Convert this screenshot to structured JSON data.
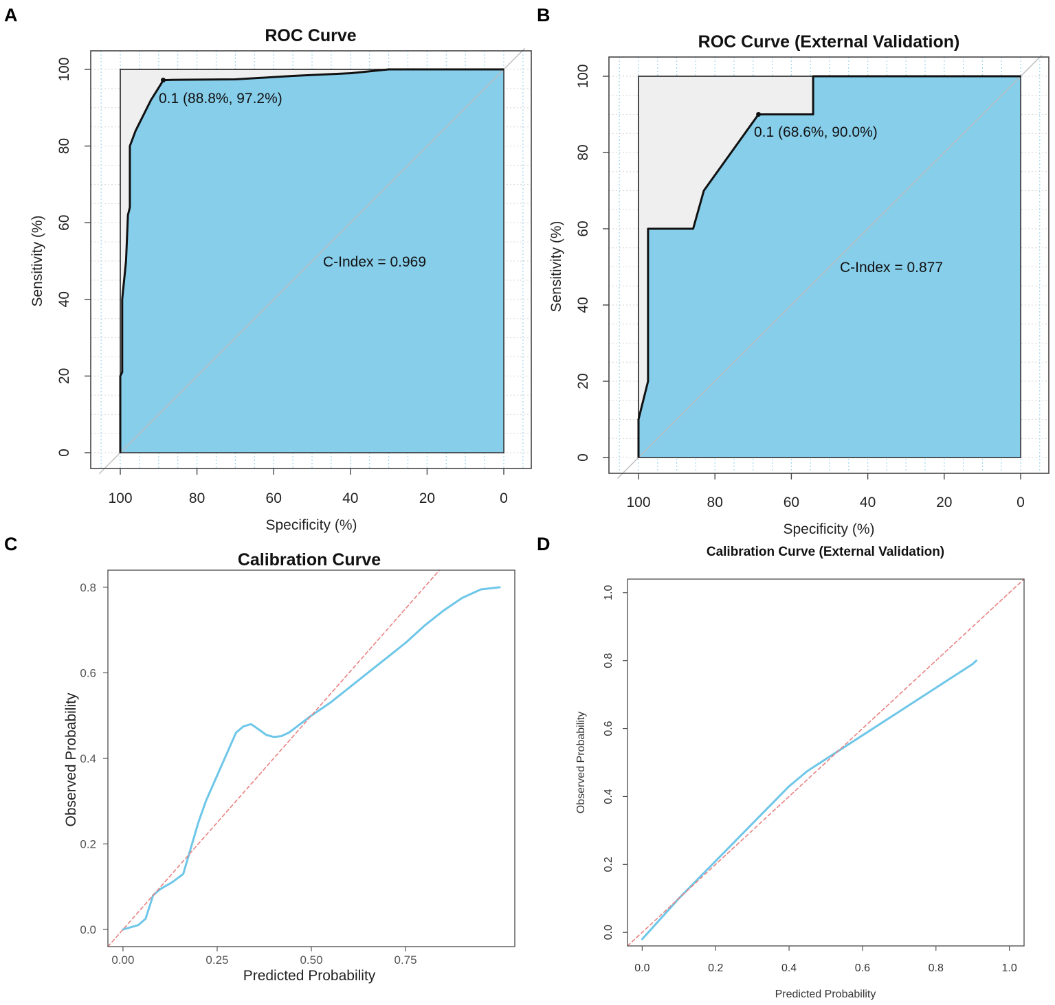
{
  "panels": [
    {
      "letter": "A",
      "chart_data": {
        "type": "line",
        "subtype": "roc",
        "title": "ROC Curve",
        "xlabel": "Specificity (%)",
        "ylabel": "Sensitivity (%)",
        "xlim": [
          100,
          0
        ],
        "ylim": [
          0,
          100
        ],
        "xticks": [
          "100",
          "80",
          "60",
          "40",
          "20",
          "0"
        ],
        "yticks": [
          "0",
          "20",
          "40",
          "60",
          "80",
          "100"
        ],
        "series": [
          {
            "name": "ROC",
            "fill": "#87ceeb",
            "points": [
              [
                100,
                0
              ],
              [
                100,
                20
              ],
              [
                99.5,
                21
              ],
              [
                99.5,
                40
              ],
              [
                98.5,
                50
              ],
              [
                98,
                62
              ],
              [
                97.5,
                64
              ],
              [
                97.5,
                80
              ],
              [
                96,
                84
              ],
              [
                94,
                88
              ],
              [
                92,
                92
              ],
              [
                89.5,
                96
              ],
              [
                88.8,
                97.2
              ],
              [
                85,
                97.3
              ],
              [
                70,
                97.4
              ],
              [
                55,
                98.3
              ],
              [
                40,
                99
              ],
              [
                30,
                100
              ],
              [
                0,
                100
              ]
            ]
          }
        ],
        "threshold_point": {
          "specificity": 88.8,
          "sensitivity": 97.2
        },
        "threshold_label": "0.1 (88.8%, 97.2%)",
        "annotation": "C-Index = 0.969"
      }
    },
    {
      "letter": "B",
      "chart_data": {
        "type": "line",
        "subtype": "roc",
        "title": "ROC Curve (External Validation)",
        "xlabel": "Specificity (%)",
        "ylabel": "Sensitivity (%)",
        "xlim": [
          100,
          0
        ],
        "ylim": [
          0,
          100
        ],
        "xticks": [
          "100",
          "80",
          "60",
          "40",
          "20",
          "0"
        ],
        "yticks": [
          "0",
          "20",
          "40",
          "60",
          "80",
          "100"
        ],
        "series": [
          {
            "name": "ROC",
            "fill": "#87ceeb",
            "points": [
              [
                100,
                0
              ],
              [
                100,
                10
              ],
              [
                97.5,
                20
              ],
              [
                97.5,
                60
              ],
              [
                85.7,
                60
              ],
              [
                82.9,
                70
              ],
              [
                68.6,
                90
              ],
              [
                54.3,
                90
              ],
              [
                54.3,
                100
              ],
              [
                0,
                100
              ]
            ]
          }
        ],
        "threshold_point": {
          "specificity": 68.6,
          "sensitivity": 90.0
        },
        "threshold_label": "0.1 (68.6%, 90.0%)",
        "annotation": "C-Index = 0.877"
      }
    },
    {
      "letter": "C",
      "chart_data": {
        "type": "line",
        "title": "Calibration Curve",
        "xlabel": "Predicted Probability",
        "ylabel": "Observed Probability",
        "xlim": [
          -0.04,
          1.04
        ],
        "ylim": [
          -0.04,
          0.84
        ],
        "xticks": [
          "0.00",
          "0.25",
          "0.50",
          "0.75"
        ],
        "xtick_values": [
          0,
          0.25,
          0.5,
          0.75
        ],
        "yticks": [
          "0.0",
          "0.2",
          "0.4",
          "0.6",
          "0.8"
        ],
        "ytick_values": [
          0,
          0.2,
          0.4,
          0.6,
          0.8
        ],
        "series": [
          {
            "name": "Calibration",
            "color": "#6ec6e8",
            "points": [
              [
                0,
                0
              ],
              [
                0.02,
                0.005
              ],
              [
                0.04,
                0.01
              ],
              [
                0.06,
                0.025
              ],
              [
                0.08,
                0.08
              ],
              [
                0.1,
                0.095
              ],
              [
                0.13,
                0.11
              ],
              [
                0.16,
                0.13
              ],
              [
                0.18,
                0.19
              ],
              [
                0.2,
                0.25
              ],
              [
                0.22,
                0.3
              ],
              [
                0.25,
                0.36
              ],
              [
                0.28,
                0.42
              ],
              [
                0.3,
                0.46
              ],
              [
                0.32,
                0.475
              ],
              [
                0.34,
                0.48
              ],
              [
                0.36,
                0.468
              ],
              [
                0.38,
                0.455
              ],
              [
                0.4,
                0.45
              ],
              [
                0.42,
                0.452
              ],
              [
                0.44,
                0.46
              ],
              [
                0.47,
                0.48
              ],
              [
                0.5,
                0.5
              ],
              [
                0.55,
                0.53
              ],
              [
                0.6,
                0.565
              ],
              [
                0.65,
                0.6
              ],
              [
                0.7,
                0.635
              ],
              [
                0.75,
                0.67
              ],
              [
                0.8,
                0.71
              ],
              [
                0.85,
                0.745
              ],
              [
                0.9,
                0.775
              ],
              [
                0.95,
                0.795
              ],
              [
                1.0,
                0.8
              ]
            ]
          },
          {
            "name": "Ideal",
            "color": "#e88080",
            "dashed": true,
            "points": [
              [
                -0.04,
                -0.04
              ],
              [
                0.84,
                0.84
              ]
            ]
          }
        ]
      }
    },
    {
      "letter": "D",
      "chart_data": {
        "type": "line",
        "title": "Calibration Curve (External Validation)",
        "xlabel": "Predicted Probability",
        "ylabel": "Observed Probability",
        "xlim": [
          -0.04,
          1.04
        ],
        "ylim": [
          -0.04,
          1.04
        ],
        "xticks": [
          "0.0",
          "0.2",
          "0.4",
          "0.6",
          "0.8",
          "1.0"
        ],
        "xtick_values": [
          0,
          0.2,
          0.4,
          0.6,
          0.8,
          1.0
        ],
        "yticks": [
          "0.0",
          "0.2",
          "0.4",
          "0.6",
          "0.8",
          "1.0"
        ],
        "ytick_values": [
          0,
          0.2,
          0.4,
          0.6,
          0.8,
          1.0
        ],
        "series": [
          {
            "name": "Calibration",
            "color": "#6ec6e8",
            "points": [
              [
                0,
                -0.02
              ],
              [
                0.05,
                0.04
              ],
              [
                0.1,
                0.1
              ],
              [
                0.15,
                0.155
              ],
              [
                0.2,
                0.21
              ],
              [
                0.25,
                0.265
              ],
              [
                0.3,
                0.32
              ],
              [
                0.35,
                0.375
              ],
              [
                0.4,
                0.43
              ],
              [
                0.45,
                0.475
              ],
              [
                0.5,
                0.51
              ],
              [
                0.55,
                0.545
              ],
              [
                0.6,
                0.58
              ],
              [
                0.65,
                0.615
              ],
              [
                0.7,
                0.65
              ],
              [
                0.75,
                0.685
              ],
              [
                0.8,
                0.72
              ],
              [
                0.85,
                0.755
              ],
              [
                0.9,
                0.79
              ],
              [
                0.91,
                0.8
              ]
            ]
          },
          {
            "name": "Ideal",
            "color": "#e88080",
            "dashed": true,
            "points": [
              [
                -0.04,
                -0.04
              ],
              [
                1.04,
                1.04
              ]
            ]
          }
        ]
      }
    }
  ]
}
